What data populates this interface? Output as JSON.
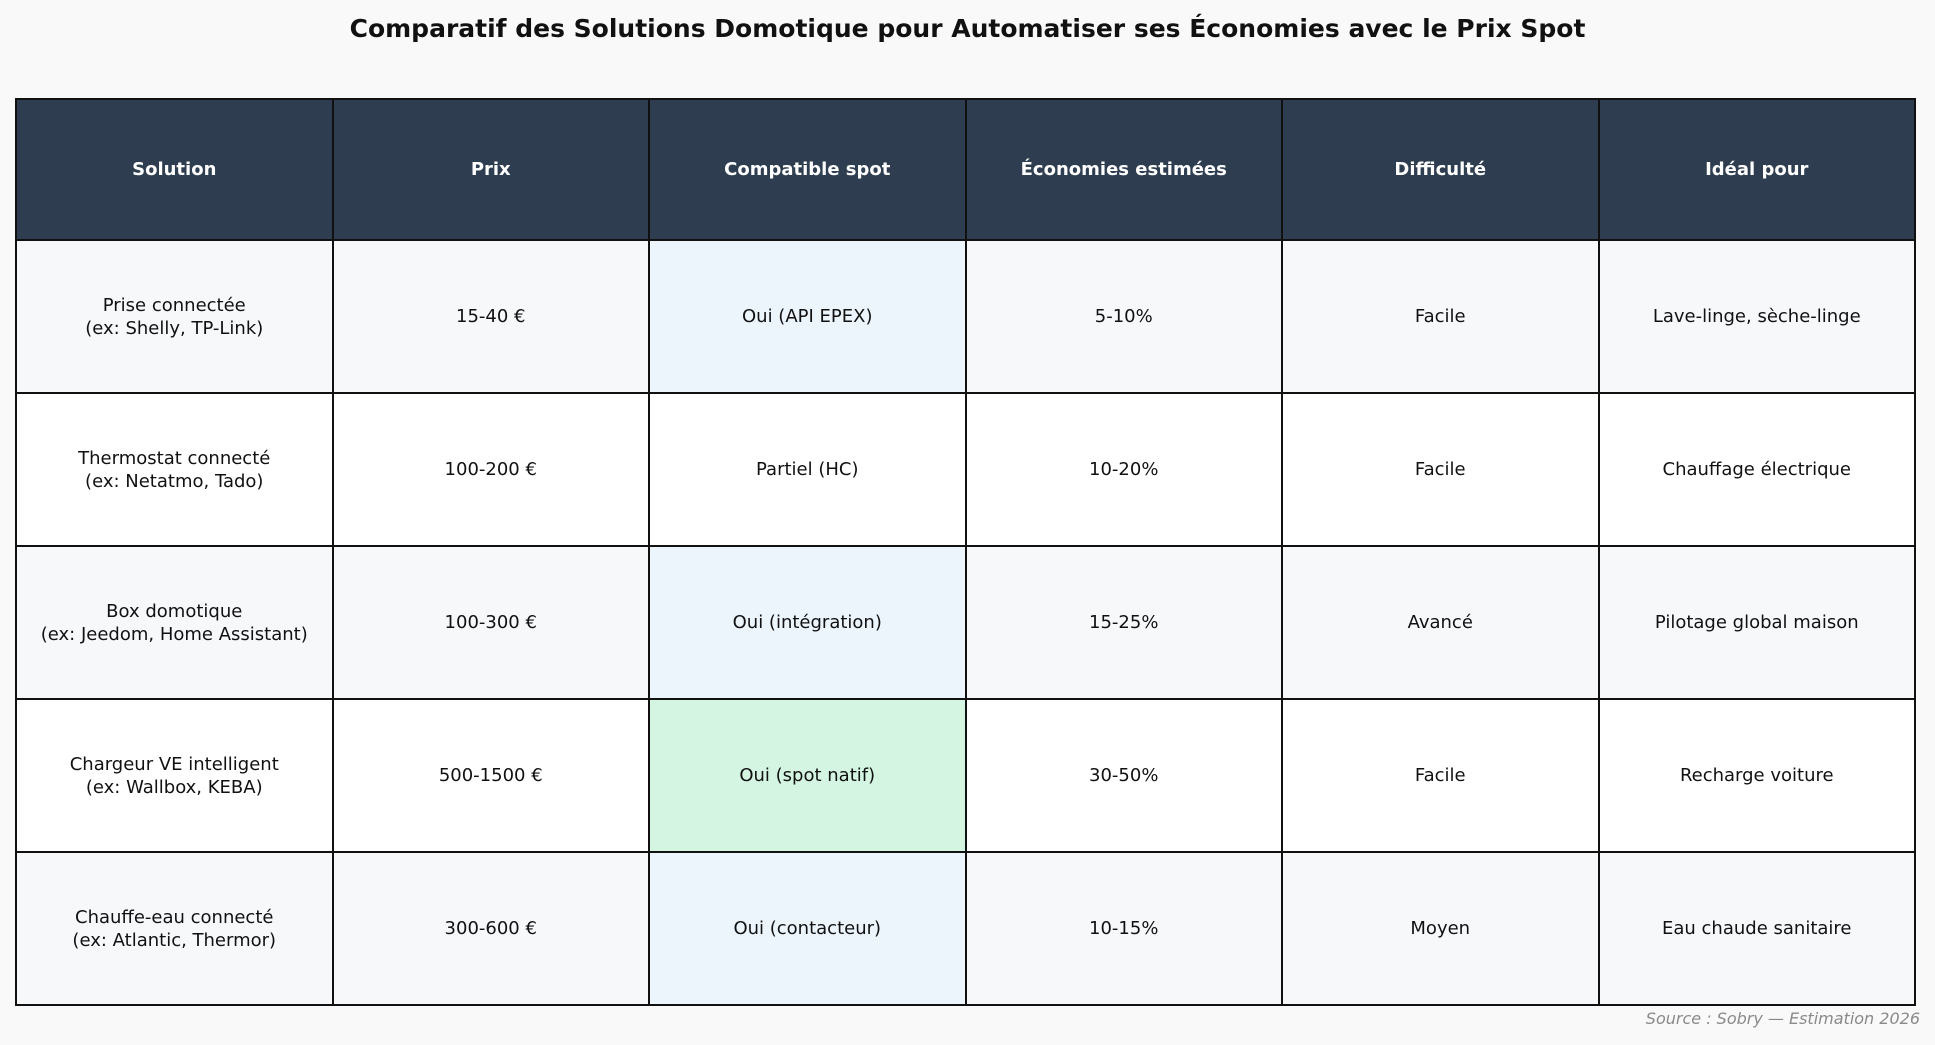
{
  "chart_data": {
    "type": "table",
    "title": "Comparatif des Solutions Domotique pour Automatiser ses Économies avec le Prix Spot",
    "columns": [
      "Solution",
      "Prix",
      "Compatible spot",
      "Économies estimées",
      "Difficulté",
      "Idéal pour"
    ],
    "rows": [
      {
        "solution": "Prise connectée",
        "example": "(ex: Shelly, TP-Link)",
        "prix": "15-40 €",
        "spot": "Oui (API EPEX)",
        "spot_color": "#ecf4fc",
        "economies": "5-10%",
        "difficulte": "Facile",
        "ideal": "Lave-linge, sèche-linge"
      },
      {
        "solution": "Thermostat connecté",
        "example": "(ex: Netatmo, Tado)",
        "prix": "100-200 €",
        "spot": "Partiel (HC)",
        "spot_color": "#ffffff",
        "economies": "10-20%",
        "difficulte": "Facile",
        "ideal": "Chauffage électrique"
      },
      {
        "solution": "Box domotique",
        "example": "(ex: Jeedom, Home Assistant)",
        "prix": "100-300 €",
        "spot": "Oui (intégration)",
        "spot_color": "#ecf4fc",
        "economies": "15-25%",
        "difficulte": "Avancé",
        "ideal": "Pilotage global maison"
      },
      {
        "solution": "Chargeur VE intelligent",
        "example": "(ex: Wallbox, KEBA)",
        "prix": "500-1500 €",
        "spot": "Oui (spot natif)",
        "spot_color": "#d4f5e2",
        "economies": "30-50%",
        "difficulte": "Facile",
        "ideal": "Recharge voiture"
      },
      {
        "solution": "Chauffe-eau connecté",
        "example": "(ex: Atlantic, Thermor)",
        "prix": "300-600 €",
        "spot": "Oui (contacteur)",
        "spot_color": "#ecf4fc",
        "economies": "10-15%",
        "difficulte": "Moyen",
        "ideal": "Eau chaude sanitaire"
      }
    ],
    "row_stripe_colors": [
      "#f7f8fa",
      "#ffffff"
    ],
    "header_color": "#2e3e50",
    "source": "Source : Sobry — Estimation 2026"
  }
}
